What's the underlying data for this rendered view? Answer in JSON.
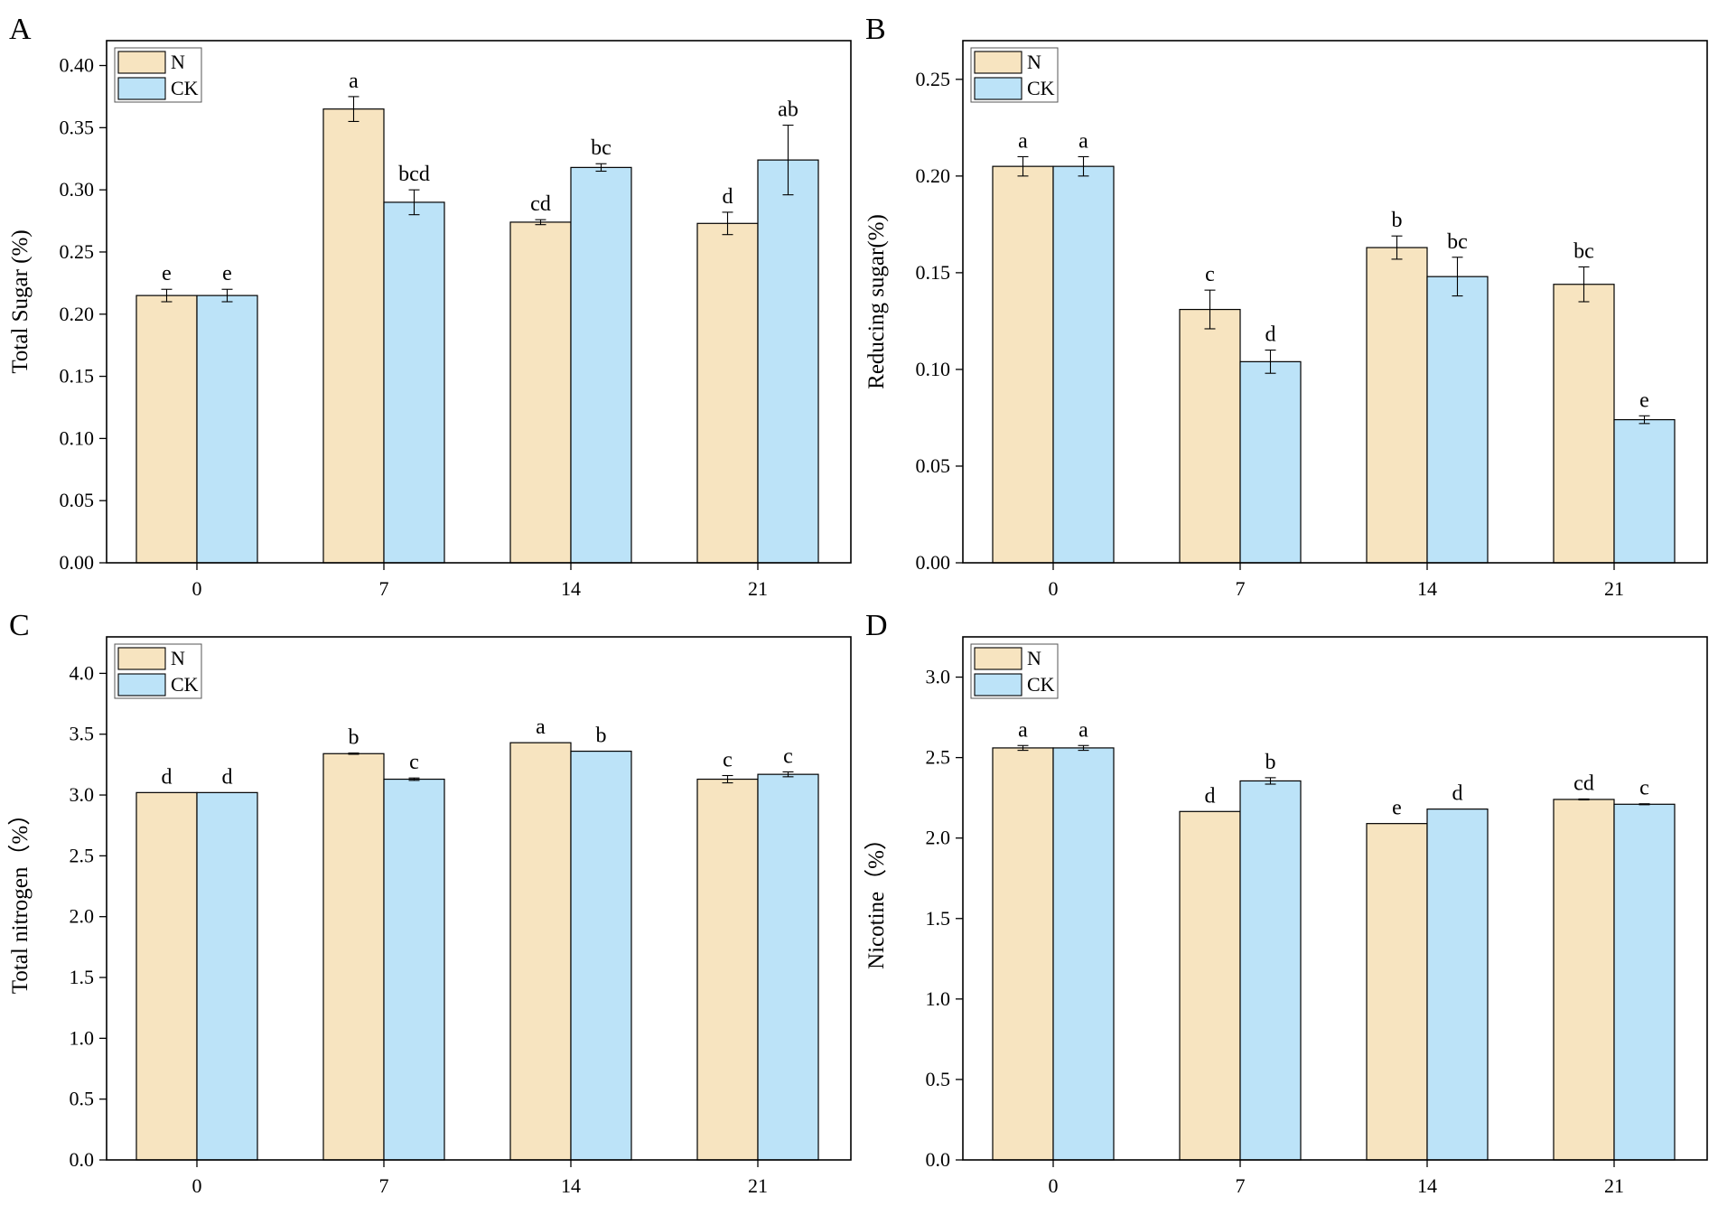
{
  "figure": {
    "colors": {
      "N": "#f7e4c0",
      "CK": "#bce3f8",
      "stroke": "#000000"
    }
  },
  "chart_data": [
    {
      "panel": "A",
      "type": "bar",
      "ylabel": "Total Sugar (%)",
      "categories": [
        "0",
        "7",
        "14",
        "21"
      ],
      "ylim": [
        0,
        0.42
      ],
      "yticks": [
        0.0,
        0.05,
        0.1,
        0.15,
        0.2,
        0.25,
        0.3,
        0.35,
        0.4
      ],
      "yticklabels": [
        "0.00",
        "0.05",
        "0.10",
        "0.15",
        "0.20",
        "0.25",
        "0.30",
        "0.35",
        "0.40"
      ],
      "legend": {
        "position": "top-left",
        "entries": [
          "N",
          "CK"
        ]
      },
      "series": [
        {
          "name": "N",
          "values": [
            0.215,
            0.365,
            0.274,
            0.273
          ],
          "errors": [
            0.005,
            0.01,
            0.002,
            0.009
          ],
          "labels": [
            "e",
            "a",
            "cd",
            "d"
          ]
        },
        {
          "name": "CK",
          "values": [
            0.215,
            0.29,
            0.318,
            0.324
          ],
          "errors": [
            0.005,
            0.01,
            0.003,
            0.028
          ],
          "labels": [
            "e",
            "bcd",
            "bc",
            "ab"
          ]
        }
      ]
    },
    {
      "panel": "B",
      "type": "bar",
      "ylabel": "Reducing sugar(%)",
      "categories": [
        "0",
        "7",
        "14",
        "21"
      ],
      "ylim": [
        0,
        0.27
      ],
      "yticks": [
        0.0,
        0.05,
        0.1,
        0.15,
        0.2,
        0.25
      ],
      "yticklabels": [
        "0.00",
        "0.05",
        "0.10",
        "0.15",
        "0.20",
        "0.25"
      ],
      "legend": {
        "position": "top-left",
        "entries": [
          "N",
          "CK"
        ]
      },
      "series": [
        {
          "name": "N",
          "values": [
            0.205,
            0.131,
            0.163,
            0.144
          ],
          "errors": [
            0.005,
            0.01,
            0.006,
            0.009
          ],
          "labels": [
            "a",
            "c",
            "b",
            "bc"
          ]
        },
        {
          "name": "CK",
          "values": [
            0.205,
            0.104,
            0.148,
            0.074
          ],
          "errors": [
            0.005,
            0.006,
            0.01,
            0.002
          ],
          "labels": [
            "a",
            "d",
            "bc",
            "e"
          ]
        }
      ]
    },
    {
      "panel": "C",
      "type": "bar",
      "ylabel": "Total nitrogen（%）",
      "categories": [
        "0",
        "7",
        "14",
        "21"
      ],
      "ylim": [
        0,
        4.3
      ],
      "yticks": [
        0.0,
        0.5,
        1.0,
        1.5,
        2.0,
        2.5,
        3.0,
        3.5,
        4.0
      ],
      "yticklabels": [
        "0.0",
        "0.5",
        "1.0",
        "1.5",
        "2.0",
        "2.5",
        "3.0",
        "3.5",
        "4.0"
      ],
      "legend": {
        "position": "top-left",
        "entries": [
          "N",
          "CK"
        ]
      },
      "series": [
        {
          "name": "N",
          "values": [
            3.02,
            3.34,
            3.43,
            3.13
          ],
          "errors": [
            0.0,
            0.005,
            0.0,
            0.03
          ],
          "labels": [
            "d",
            "b",
            "a",
            "c"
          ]
        },
        {
          "name": "CK",
          "values": [
            3.02,
            3.13,
            3.36,
            3.17
          ],
          "errors": [
            0.0,
            0.01,
            0.0,
            0.02
          ],
          "labels": [
            "d",
            "c",
            "b",
            "c"
          ]
        }
      ]
    },
    {
      "panel": "D",
      "type": "bar",
      "ylabel": "Nicotine（%）",
      "categories": [
        "0",
        "7",
        "14",
        "21"
      ],
      "ylim": [
        0,
        3.25
      ],
      "yticks": [
        0.0,
        0.5,
        1.0,
        1.5,
        2.0,
        2.5,
        3.0
      ],
      "yticklabels": [
        "0.0",
        "0.5",
        "1.0",
        "1.5",
        "2.0",
        "2.5",
        "3.0"
      ],
      "legend": {
        "position": "top-left",
        "entries": [
          "N",
          "CK"
        ]
      },
      "series": [
        {
          "name": "N",
          "values": [
            2.56,
            2.165,
            2.09,
            2.24
          ],
          "errors": [
            0.015,
            0.0,
            0.0,
            0.003
          ],
          "labels": [
            "a",
            "d",
            "e",
            "cd"
          ]
        },
        {
          "name": "CK",
          "values": [
            2.56,
            2.355,
            2.18,
            2.21
          ],
          "errors": [
            0.015,
            0.02,
            0.0,
            0.003
          ],
          "labels": [
            "a",
            "b",
            "d",
            "c"
          ]
        }
      ]
    }
  ]
}
